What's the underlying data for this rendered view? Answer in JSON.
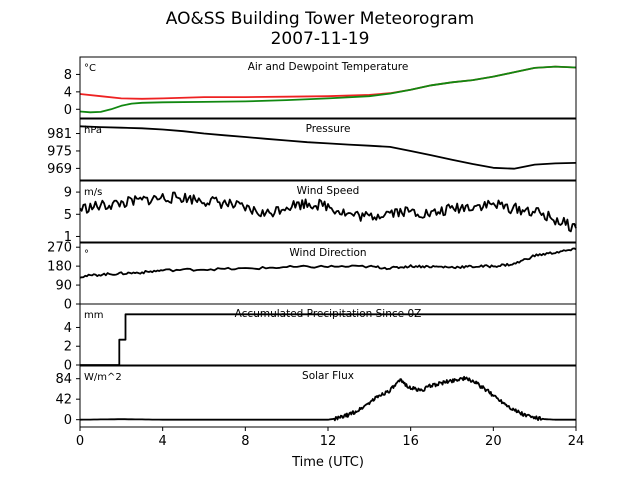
{
  "title": "AO&SS Building Tower Meteorogram",
  "subtitle": "2007-11-19",
  "xlabel": "Time (UTC)",
  "x_ticks": [
    "0",
    "4",
    "8",
    "12",
    "16",
    "20",
    "24"
  ],
  "chart_data": [
    {
      "type": "line",
      "title": "Air and Dewpoint Temperature",
      "unit": "°C",
      "xlim": [
        0,
        24
      ],
      "ylim": [
        -2,
        12
      ],
      "yticks": [
        0,
        4,
        8
      ],
      "series": [
        {
          "color": "#ee2222",
          "x": [
            0,
            1,
            2,
            3,
            4,
            6,
            8,
            10,
            12,
            14,
            15,
            16,
            17,
            18,
            19,
            20,
            21,
            22,
            23,
            24
          ],
          "values": [
            3.5,
            3.0,
            2.5,
            2.4,
            2.5,
            2.8,
            2.8,
            2.9,
            3.0,
            3.3,
            3.7,
            4.5,
            5.5,
            6.2,
            6.7,
            7.5,
            8.5,
            9.5,
            9.8,
            9.6
          ]
        },
        {
          "color": "#118811",
          "x": [
            0,
            0.5,
            1,
            1.5,
            2,
            2.5,
            3,
            4,
            6,
            8,
            10,
            12,
            14,
            15,
            16,
            17,
            18,
            19,
            20,
            21,
            22,
            23,
            24
          ],
          "values": [
            -0.5,
            -0.7,
            -0.6,
            0,
            0.8,
            1.3,
            1.5,
            1.6,
            1.7,
            1.8,
            2.1,
            2.5,
            3.0,
            3.6,
            4.5,
            5.5,
            6.2,
            6.7,
            7.5,
            8.5,
            9.5,
            9.8,
            9.6
          ]
        }
      ]
    },
    {
      "type": "line",
      "title": "Pressure",
      "unit": "hPa",
      "xlim": [
        0,
        24
      ],
      "ylim": [
        965,
        986
      ],
      "yticks": [
        969,
        975,
        981
      ],
      "series": [
        {
          "color": "#000000",
          "x": [
            0,
            1,
            2,
            3,
            4,
            5,
            6,
            7,
            8,
            9,
            10,
            11,
            12,
            13,
            14,
            15,
            16,
            17,
            18,
            19,
            20,
            21,
            22,
            23,
            24
          ],
          "values": [
            983.5,
            983.2,
            983.0,
            982.8,
            982.4,
            981.8,
            981.0,
            980.4,
            979.8,
            979.2,
            978.6,
            978.0,
            977.6,
            977.2,
            976.8,
            976.4,
            975.0,
            973.5,
            972.0,
            970.5,
            969.2,
            968.9,
            970.3,
            970.7,
            970.9
          ]
        }
      ]
    },
    {
      "type": "line",
      "title": "Wind Speed",
      "unit": "m/s",
      "xlim": [
        0,
        24
      ],
      "ylim": [
        0,
        11
      ],
      "yticks": [
        1,
        5,
        9
      ],
      "series": [
        {
          "color": "#000000",
          "x": [
            0,
            1,
            2,
            3,
            4,
            5,
            6,
            7,
            8,
            9,
            10,
            11,
            12,
            13,
            14,
            15,
            16,
            17,
            18,
            19,
            20,
            21,
            22,
            23,
            24
          ],
          "values": [
            6.0,
            6.5,
            7.0,
            7.5,
            8.0,
            8.0,
            7.5,
            7.0,
            6.0,
            5.0,
            6.5,
            7.0,
            6.5,
            5.0,
            4.5,
            5.5,
            5.5,
            5.0,
            6.0,
            6.5,
            6.8,
            6.0,
            5.5,
            4.0,
            2.5
          ]
        }
      ]
    },
    {
      "type": "line",
      "title": "Wind Direction",
      "unit": "°",
      "xlim": [
        0,
        24
      ],
      "ylim": [
        0,
        290
      ],
      "yticks": [
        0,
        90,
        180,
        270
      ],
      "series": [
        {
          "color": "#000000",
          "x": [
            0,
            1,
            2,
            3,
            4,
            6,
            8,
            10,
            12,
            14,
            15,
            16,
            17,
            18,
            19,
            20,
            21,
            22,
            23,
            24
          ],
          "values": [
            130,
            140,
            145,
            150,
            160,
            165,
            168,
            175,
            178,
            178,
            170,
            180,
            178,
            175,
            178,
            180,
            190,
            230,
            245,
            260
          ]
        }
      ]
    },
    {
      "type": "line",
      "title": "Accumulated Precipitation Since 0Z",
      "unit": "mm",
      "xlim": [
        0,
        24
      ],
      "ylim": [
        0,
        6.5
      ],
      "yticks": [
        0,
        2,
        4
      ],
      "series": [
        {
          "color": "#000000",
          "x": [
            0,
            1.9,
            1.9,
            2.2,
            2.2,
            24
          ],
          "values": [
            0,
            0,
            2.7,
            2.7,
            5.4,
            5.4
          ]
        }
      ]
    },
    {
      "type": "line",
      "title": "Solar Flux",
      "unit": "W/m^2",
      "xlim": [
        0,
        24
      ],
      "ylim": [
        -15,
        110
      ],
      "yticks": [
        0,
        42,
        84
      ],
      "series": [
        {
          "color": "#000000",
          "x": [
            0,
            2,
            4,
            6,
            8,
            10,
            12,
            12.5,
            13,
            13.5,
            14,
            14.5,
            15,
            15.5,
            16,
            16.5,
            17,
            17.5,
            18,
            18.5,
            19,
            19.5,
            20,
            20.5,
            21,
            21.5,
            22,
            22.5,
            23,
            24
          ],
          "values": [
            0,
            1,
            0,
            0,
            0,
            0,
            0,
            3,
            10,
            20,
            35,
            50,
            60,
            80,
            65,
            60,
            70,
            75,
            80,
            85,
            80,
            65,
            50,
            35,
            20,
            10,
            4,
            1,
            0,
            0
          ]
        }
      ]
    }
  ]
}
